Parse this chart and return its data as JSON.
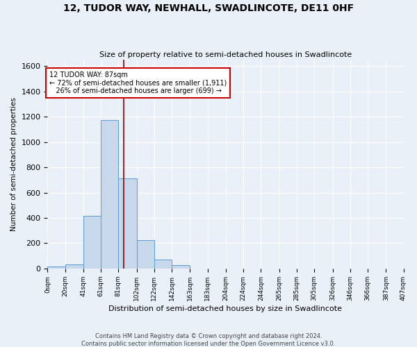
{
  "title": "12, TUDOR WAY, NEWHALL, SWADLINCOTE, DE11 0HF",
  "subtitle": "Size of property relative to semi-detached houses in Swadlincote",
  "xlabel": "Distribution of semi-detached houses by size in Swadlincote",
  "ylabel": "Number of semi-detached properties",
  "footer1": "Contains HM Land Registry data © Crown copyright and database right 2024.",
  "footer2": "Contains public sector information licensed under the Open Government Licence v3.0.",
  "bin_edges": [
    0,
    20,
    41,
    61,
    81,
    102,
    122,
    142,
    163,
    183,
    204,
    224,
    244,
    265,
    285,
    305,
    326,
    346,
    366,
    387,
    407
  ],
  "bin_counts": [
    15,
    35,
    415,
    1175,
    715,
    225,
    70,
    25,
    0,
    0,
    0,
    0,
    0,
    0,
    0,
    0,
    0,
    0,
    0,
    0
  ],
  "property_size": 87,
  "annotation_line1": "12 TUDOR WAY: 87sqm",
  "annotation_line2": "← 72% of semi-detached houses are smaller (1,911)",
  "annotation_line3": "26% of semi-detached houses are larger (699) →",
  "bar_facecolor": "#c8d8eb",
  "bar_edgecolor": "#5b9bd5",
  "vline_color": "#8b0000",
  "annotation_boxcolor": "white",
  "annotation_boxedge": "#cc0000",
  "background_color": "#eaf0f8",
  "ylim": [
    0,
    1650
  ],
  "yticks": [
    0,
    200,
    400,
    600,
    800,
    1000,
    1200,
    1400,
    1600
  ]
}
